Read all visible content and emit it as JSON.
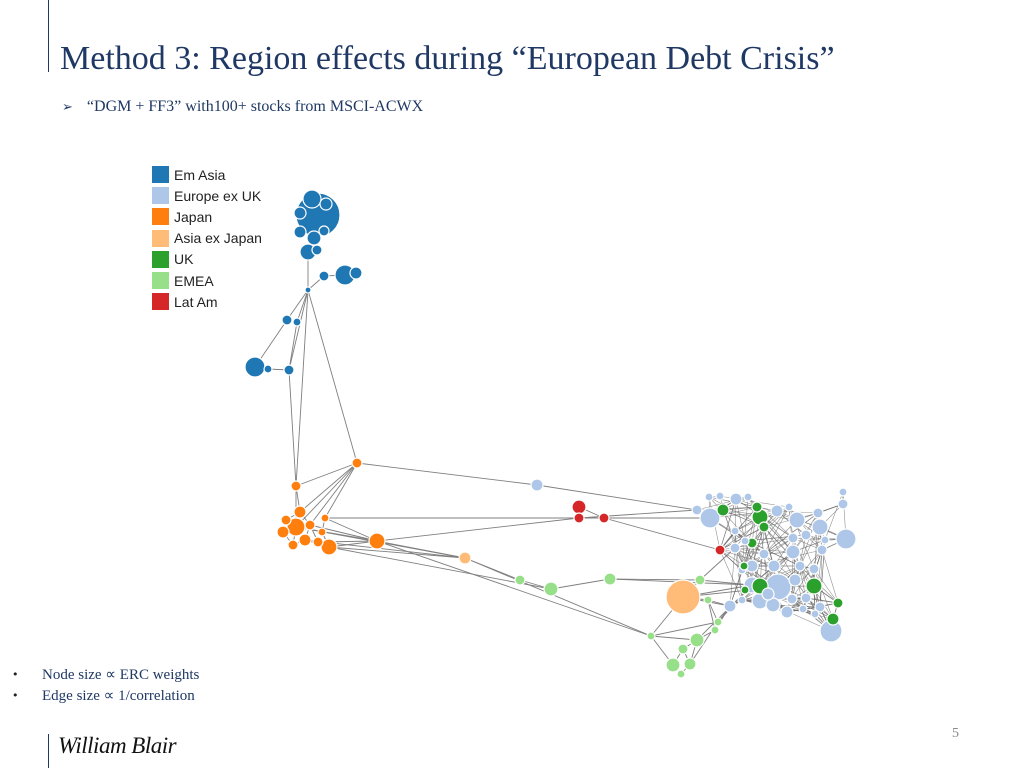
{
  "slide": {
    "title": "Method 3: Region effects during “European Debt Crisis”",
    "subtitle": "“DGM + FF3” with100+ stocks from MSCI-ACWX",
    "bullets": [
      "Node size ∝ ERC weights",
      "Edge size ∝ 1/correlation"
    ],
    "logo": "William Blair",
    "page_number": "5"
  },
  "legend": [
    {
      "label": "Em Asia",
      "color": "#1f77b4"
    },
    {
      "label": "Europe ex UK",
      "color": "#aec7e8"
    },
    {
      "label": "Japan",
      "color": "#ff7f0e"
    },
    {
      "label": "Asia ex Japan",
      "color": "#ffbb78"
    },
    {
      "label": "UK",
      "color": "#2ca02c"
    },
    {
      "label": "EMEA",
      "color": "#98df8a"
    },
    {
      "label": "Lat Am",
      "color": "#d62728"
    }
  ],
  "colors": {
    "edge": "#7f7f7f",
    "title": "#1f3864",
    "node_stroke": "#ffffff"
  }
}
